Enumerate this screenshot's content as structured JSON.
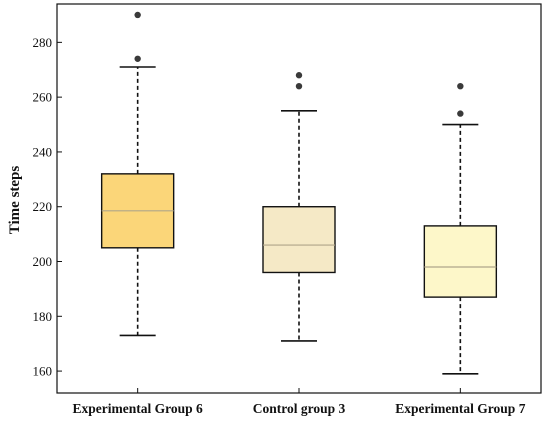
{
  "chart_data": {
    "type": "box",
    "title": "",
    "xlabel": "",
    "ylabel": "Time steps",
    "ylim": [
      152,
      294
    ],
    "yticks": [
      160,
      180,
      200,
      220,
      240,
      260,
      280
    ],
    "grid": false,
    "categories": [
      "Experimental Group 6",
      "Control group 3",
      "Experimental Group 7"
    ],
    "boxes": [
      {
        "label": "Experimental Group 6",
        "whisker_low": 173,
        "q1": 205,
        "median": 218.5,
        "q3": 232,
        "whisker_high": 271,
        "outliers": [
          274,
          290
        ],
        "color": "#FBD679"
      },
      {
        "label": "Control group 3",
        "whisker_low": 171,
        "q1": 196,
        "median": 206,
        "q3": 220,
        "whisker_high": 255,
        "outliers": [
          264,
          268
        ],
        "color": "#F5E9C6"
      },
      {
        "label": "Experimental Group 7",
        "whisker_low": 159,
        "q1": 187,
        "median": 198,
        "q3": 213,
        "whisker_high": 250,
        "outliers": [
          254,
          264
        ],
        "color": "#FDF7C9"
      }
    ]
  }
}
